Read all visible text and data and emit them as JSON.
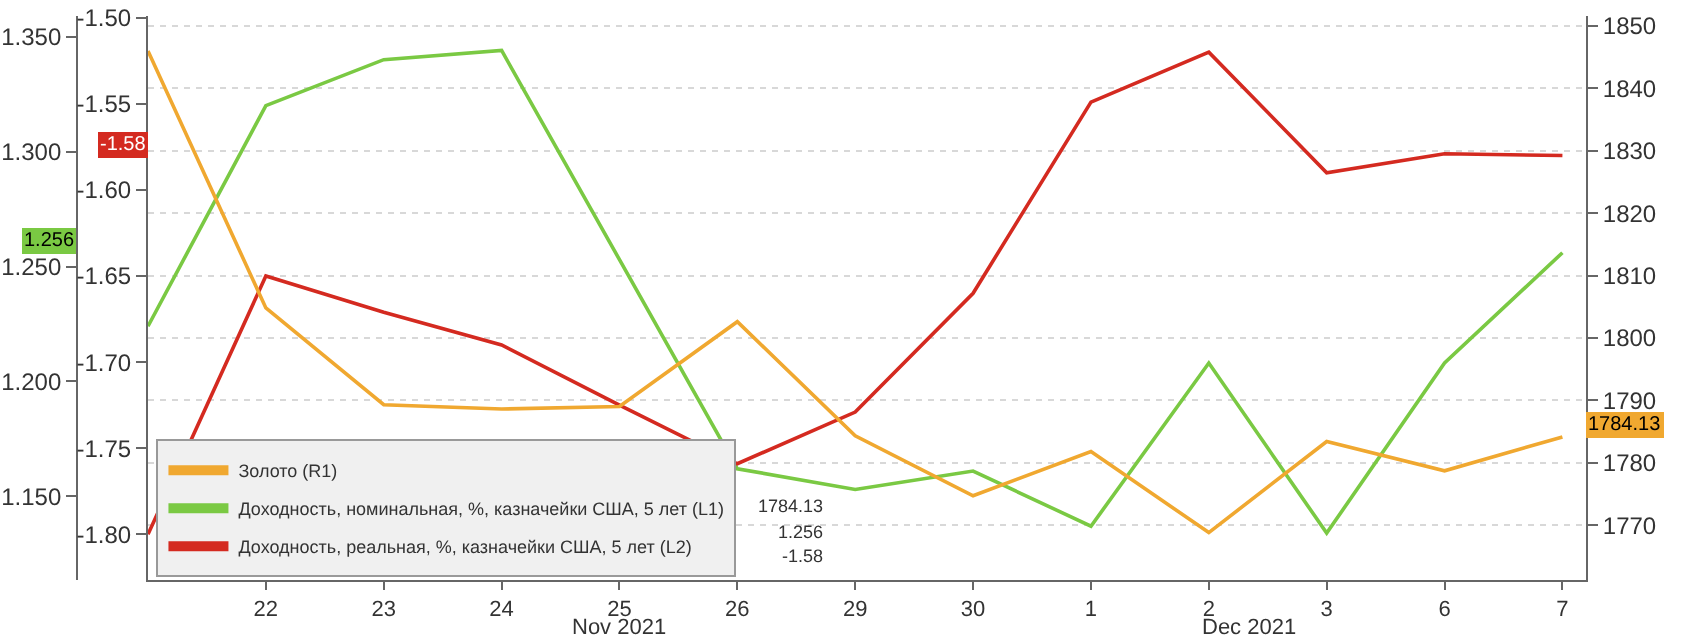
{
  "chart_data": {
    "type": "line",
    "categories": [
      null,
      "22",
      "23",
      "24",
      "25",
      "26",
      "29",
      "30",
      "1",
      "2",
      "3",
      "6",
      "7"
    ],
    "series": [
      {
        "name": "Золото (R1)",
        "color": "#f0a830",
        "axis": "y3",
        "values": [
          1846,
          1804.8,
          1789.3,
          1788.6,
          1789,
          1802.6,
          1784.3,
          1774.7,
          1781.8,
          1768.8,
          1783.4,
          1778.7,
          1784.13
        ]
      },
      {
        "name": "Доходность, номинальная, %, казначейки США, 5 лет (L1)",
        "color": "#7ac943",
        "values": [
          1.224,
          1.32,
          1.34,
          1.344,
          1.253,
          1.162,
          1.153,
          1.161,
          1.137,
          1.208,
          1.134,
          1.208,
          1.256
        ]
      },
      {
        "name": "Доходность, реальная, %, казначейки США, 5 лет (L2)",
        "color": "#d42a20",
        "axis": "y2",
        "values": [
          -1.8,
          -1.65,
          -1.671,
          -1.69,
          -1.725,
          -1.759,
          -1.729,
          -1.66,
          -1.549,
          -1.52,
          -1.59,
          -1.579,
          -1.58
        ]
      }
    ],
    "ylim": [
      1.1136,
      1.359
    ],
    "yticks": [
      {
        "value": 1.15,
        "label": "1.150"
      },
      {
        "value": 1.2,
        "label": "1.200"
      },
      {
        "value": 1.25,
        "label": "1.250"
      },
      {
        "value": 1.3,
        "label": "1.300"
      },
      {
        "value": 1.35,
        "label": "1.350"
      }
    ],
    "y2lim": [
      -1.8265,
      -1.499
    ],
    "y2ticks": [
      {
        "value": -1.8,
        "label": "-1.80"
      },
      {
        "value": -1.75,
        "label": "-1.75"
      },
      {
        "value": -1.7,
        "label": "-1.70"
      },
      {
        "value": -1.65,
        "label": "-1.65"
      },
      {
        "value": -1.6,
        "label": "-1.60"
      },
      {
        "value": -1.55,
        "label": "-1.55"
      },
      {
        "value": -1.5,
        "label": "-1.50"
      }
    ],
    "y3lim": [
      1761.2,
      1851.6
    ],
    "y3ticks": [
      1770,
      1780,
      1790,
      1800,
      1810,
      1820,
      1830,
      1840,
      1850
    ],
    "annotations": [
      "Nov 2021",
      "Dec 2021",
      "1784.13",
      "1.256",
      "-1.58"
    ],
    "grid": "y",
    "legend": "bottom left",
    "marker": "none",
    "line_style": "solid"
  }
}
